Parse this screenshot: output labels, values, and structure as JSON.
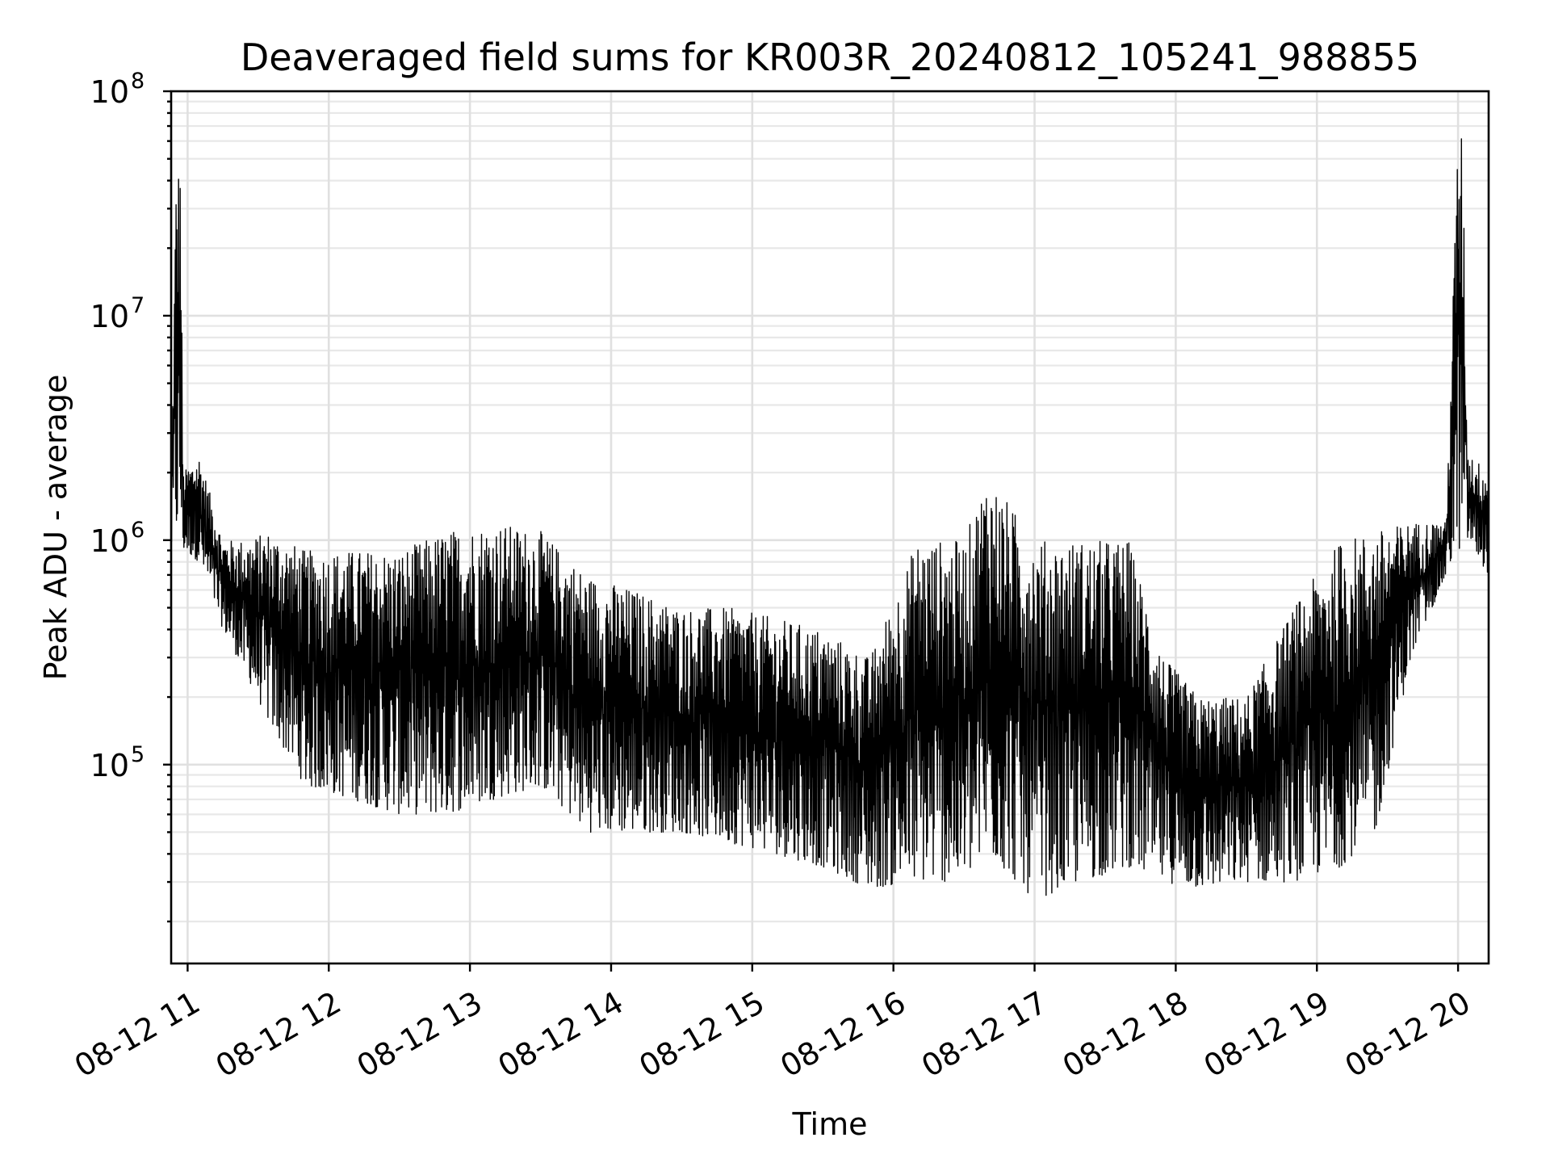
{
  "chart_data": {
    "type": "line",
    "title": "Deaveraged field sums for KR003R_20240812_105241_988855",
    "xlabel": "Time",
    "ylabel": "Peak ADU - average",
    "yscale": "log",
    "ylim": [
      13000,
      100000000
    ],
    "xlim": [
      "2024-08-12 10:53",
      "2024-08-12 20:13"
    ],
    "grid": true,
    "x_ticks": [
      {
        "value": "2024-08-12 11:00",
        "label": "08-12 11"
      },
      {
        "value": "2024-08-12 12:00",
        "label": "08-12 12"
      },
      {
        "value": "2024-08-12 13:00",
        "label": "08-12 13"
      },
      {
        "value": "2024-08-12 14:00",
        "label": "08-12 14"
      },
      {
        "value": "2024-08-12 15:00",
        "label": "08-12 15"
      },
      {
        "value": "2024-08-12 16:00",
        "label": "08-12 16"
      },
      {
        "value": "2024-08-12 17:00",
        "label": "08-12 17"
      },
      {
        "value": "2024-08-12 18:00",
        "label": "08-12 18"
      },
      {
        "value": "2024-08-12 19:00",
        "label": "08-12 19"
      },
      {
        "value": "2024-08-12 20:00",
        "label": "08-12 20"
      }
    ],
    "y_ticks": [
      {
        "value": 100000,
        "base": "10",
        "exp": "5"
      },
      {
        "value": 1000000,
        "base": "10",
        "exp": "6"
      },
      {
        "value": 10000000,
        "base": "10",
        "exp": "7"
      },
      {
        "value": 100000000,
        "base": "10",
        "exp": "8"
      }
    ],
    "series": [
      {
        "color": "#000000",
        "envelope": [
          {
            "x": "2024-08-12 10:53",
            "low": 900000,
            "high": 1500000
          },
          {
            "x": "2024-08-12 10:55",
            "low": 1000000,
            "high": 40000000
          },
          {
            "x": "2024-08-12 10:57",
            "low": 1000000,
            "high": 55000000
          },
          {
            "x": "2024-08-12 10:58",
            "low": 900000,
            "high": 2000000
          },
          {
            "x": "2024-08-12 11:05",
            "low": 800000,
            "high": 2400000
          },
          {
            "x": "2024-08-12 11:15",
            "low": 400000,
            "high": 1000000
          },
          {
            "x": "2024-08-12 11:25",
            "low": 250000,
            "high": 1000000
          },
          {
            "x": "2024-08-12 11:35",
            "low": 150000,
            "high": 1100000
          },
          {
            "x": "2024-08-12 11:50",
            "low": 80000,
            "high": 900000
          },
          {
            "x": "2024-08-12 12:10",
            "low": 70000,
            "high": 900000
          },
          {
            "x": "2024-08-12 12:30",
            "low": 60000,
            "high": 900000
          },
          {
            "x": "2024-08-12 12:50",
            "low": 60000,
            "high": 1100000
          },
          {
            "x": "2024-08-12 13:10",
            "low": 70000,
            "high": 1200000
          },
          {
            "x": "2024-08-12 13:30",
            "low": 80000,
            "high": 1100000
          },
          {
            "x": "2024-08-12 13:50",
            "low": 50000,
            "high": 700000
          },
          {
            "x": "2024-08-12 14:10",
            "low": 50000,
            "high": 600000
          },
          {
            "x": "2024-08-12 14:30",
            "low": 50000,
            "high": 500000
          },
          {
            "x": "2024-08-12 14:50",
            "low": 45000,
            "high": 500000
          },
          {
            "x": "2024-08-12 15:10",
            "low": 40000,
            "high": 450000
          },
          {
            "x": "2024-08-12 15:30",
            "low": 35000,
            "high": 400000
          },
          {
            "x": "2024-08-12 15:50",
            "low": 28000,
            "high": 300000
          },
          {
            "x": "2024-08-12 16:10",
            "low": 30000,
            "high": 1000000
          },
          {
            "x": "2024-08-12 16:30",
            "low": 30000,
            "high": 1000000
          },
          {
            "x": "2024-08-12 16:40",
            "low": 40000,
            "high": 2000000
          },
          {
            "x": "2024-08-12 17:00",
            "low": 25000,
            "high": 1000000
          },
          {
            "x": "2024-08-12 17:20",
            "low": 30000,
            "high": 1000000
          },
          {
            "x": "2024-08-12 17:40",
            "low": 35000,
            "high": 1000000
          },
          {
            "x": "2024-08-12 17:55",
            "low": 30000,
            "high": 300000
          },
          {
            "x": "2024-08-12 18:10",
            "low": 28000,
            "high": 200000
          },
          {
            "x": "2024-08-12 18:30",
            "low": 30000,
            "high": 200000
          },
          {
            "x": "2024-08-12 18:50",
            "low": 30000,
            "high": 500000
          },
          {
            "x": "2024-08-12 19:10",
            "low": 35000,
            "high": 1000000
          },
          {
            "x": "2024-08-12 19:25",
            "low": 50000,
            "high": 1100000
          },
          {
            "x": "2024-08-12 19:40",
            "low": 300000,
            "high": 1200000
          },
          {
            "x": "2024-08-12 19:55",
            "low": 700000,
            "high": 1200000
          },
          {
            "x": "2024-08-12 20:00",
            "low": 900000,
            "high": 70000000
          },
          {
            "x": "2024-08-12 20:02",
            "low": 900000,
            "high": 62000000
          },
          {
            "x": "2024-08-12 20:04",
            "low": 1000000,
            "high": 2500000
          },
          {
            "x": "2024-08-12 20:13",
            "low": 700000,
            "high": 2000000
          }
        ]
      }
    ]
  }
}
